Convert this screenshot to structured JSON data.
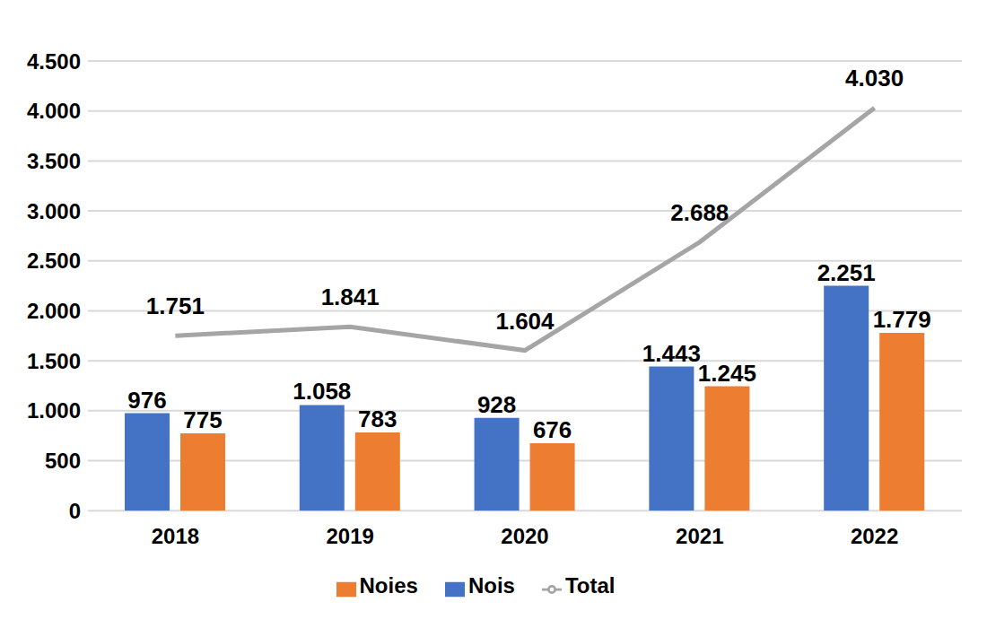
{
  "chart_data": {
    "type": "bar",
    "categories": [
      "2018",
      "2019",
      "2020",
      "2021",
      "2022"
    ],
    "series": [
      {
        "name": "Nois",
        "type": "bar",
        "color": "#4472c4",
        "values": [
          976,
          1058,
          928,
          1443,
          2251
        ],
        "value_labels": [
          "976",
          "1.058",
          "928",
          "1.443",
          "2.251"
        ]
      },
      {
        "name": "Noies",
        "type": "bar",
        "color": "#ed7d31",
        "values": [
          775,
          783,
          676,
          1245,
          1779
        ],
        "value_labels": [
          "775",
          "783",
          "676",
          "1.245",
          "1.779"
        ]
      },
      {
        "name": "Total",
        "type": "line",
        "color": "#a5a5a5",
        "values": [
          1751,
          1841,
          1604,
          2688,
          4030
        ],
        "value_labels": [
          "1.751",
          "1.841",
          "1.604",
          "2.688",
          "4.030"
        ]
      }
    ],
    "ylim": [
      0,
      4500
    ],
    "yticks": [
      0,
      500,
      {
        "value": 1000,
        "label": "1.000"
      },
      {
        "value": 1500,
        "label": "1.500"
      },
      {
        "value": 2000,
        "label": "2.000"
      },
      {
        "value": 2500,
        "label": "2.500"
      },
      {
        "value": 3000,
        "label": "3.000"
      },
      {
        "value": 3500,
        "label": "3.500"
      },
      {
        "value": 4000,
        "label": "4.000"
      },
      {
        "value": 4500,
        "label": "4.500"
      }
    ],
    "grid": true,
    "legend": "bottom",
    "data_labels": true
  }
}
